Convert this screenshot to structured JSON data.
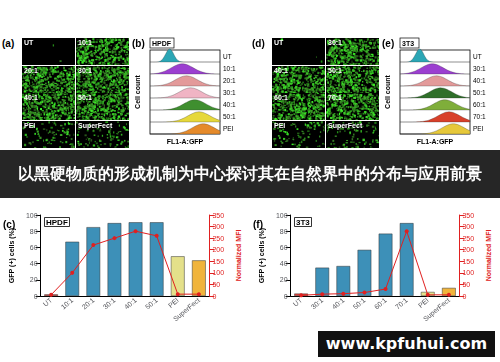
{
  "banner": "以黑硬物质的形成机制为中心探讨其在自然界中的分布与应用前景",
  "watermark": "www.kpfuhui.com",
  "image_panels": [
    {
      "letter": "(a)",
      "tiles": [
        "UT",
        "10:1",
        "20:1",
        "30:1",
        "40:1",
        "50:1",
        "PEI",
        "SuperFect"
      ]
    },
    {
      "letter": "(d)",
      "tiles": [
        "UT",
        "30:1",
        "40:1",
        "50:1",
        "60:1",
        "70:1",
        "PEI",
        "SuperFect"
      ]
    }
  ],
  "histogram_panels": [
    {
      "letter": "(b)",
      "title": "HPDF",
      "y_label": "Cell count",
      "x_label": "FL1-A:GFP",
      "traces": [
        {
          "label": "UT",
          "color": "#2ba6b5"
        },
        {
          "label": "10:1",
          "color": "#9b3fd0"
        },
        {
          "label": "20:1",
          "color": "#e39a9a"
        },
        {
          "label": "30:1",
          "color": "#f0b4c4"
        },
        {
          "label": "40:1",
          "color": "#3f8f2f"
        },
        {
          "label": "50:1",
          "color": "#e6d83a"
        },
        {
          "label": "PEI",
          "color": "#e58a2a"
        }
      ]
    },
    {
      "letter": "(e)",
      "title": "3T3",
      "y_label": "Cell count",
      "x_label": "FL1-A:GFP",
      "traces": [
        {
          "label": "UT",
          "color": "#2ba6b5"
        },
        {
          "label": "30:1",
          "color": "#9b3fd0"
        },
        {
          "label": "40:1",
          "color": "#e39a9a"
        },
        {
          "label": "50:1",
          "color": "#2f6f2a"
        },
        {
          "label": "60:1",
          "color": "#7fae3a"
        },
        {
          "label": "70:1",
          "color": "#d8402a"
        },
        {
          "label": "PEI",
          "color": "#e6c83a"
        }
      ]
    }
  ],
  "chart_data": [
    {
      "type": "bar",
      "title": "HPDF",
      "annotations": [
        "(c)"
      ],
      "categories": [
        "UT",
        "10:1",
        "20:1",
        "30:1",
        "40:1",
        "50:1",
        "PEI",
        "SuperFect"
      ],
      "y_label": "GFP (+) cells (%)",
      "y2_label": "Normalized MFI",
      "ylim": [
        0,
        100
      ],
      "yticks": [
        0,
        20,
        40,
        60,
        80,
        100
      ],
      "y2lim": [
        0,
        350
      ],
      "y2ticks": [
        0,
        50,
        100,
        150,
        200,
        250,
        300,
        350
      ],
      "grid": false,
      "series": [
        {
          "type": "bar",
          "colors": [
            "#e0403a",
            "#3d90b8",
            "#3d90b8",
            "#3d90b8",
            "#3d90b8",
            "#3d90b8",
            "#e4e08a",
            "#f0b43c"
          ],
          "values": [
            2,
            67,
            85,
            90,
            91,
            91,
            49,
            44
          ]
        },
        {
          "type": "line",
          "axis": "y2",
          "color": "#e02020",
          "marker": "circle",
          "values": [
            5,
            100,
            220,
            250,
            280,
            260,
            8,
            8
          ]
        }
      ]
    },
    {
      "type": "bar",
      "title": "3T3",
      "annotations": [
        "(f)"
      ],
      "categories": [
        "UT",
        "30:1",
        "40:1",
        "50:1",
        "60:1",
        "70:1",
        "PEI",
        "SuperFect"
      ],
      "y_label": "GFP (+) cells (%)",
      "y2_label": "Normalized MFI",
      "ylim": [
        0,
        100
      ],
      "yticks": [
        0,
        20,
        40,
        60,
        80,
        100
      ],
      "y2lim": [
        0,
        350
      ],
      "y2ticks": [
        0,
        50,
        100,
        150,
        200,
        250,
        300,
        350
      ],
      "grid": false,
      "series": [
        {
          "type": "bar",
          "colors": [
            "#e0403a",
            "#3d90b8",
            "#3d90b8",
            "#3d90b8",
            "#3d90b8",
            "#3d90b8",
            "#e4e08a",
            "#f0b43c"
          ],
          "values": [
            3,
            35,
            37,
            57,
            77,
            90,
            5,
            10
          ]
        },
        {
          "type": "line",
          "axis": "y2",
          "color": "#e02020",
          "marker": "circle",
          "values": [
            3,
            8,
            10,
            15,
            30,
            280,
            5,
            5
          ]
        }
      ]
    }
  ]
}
